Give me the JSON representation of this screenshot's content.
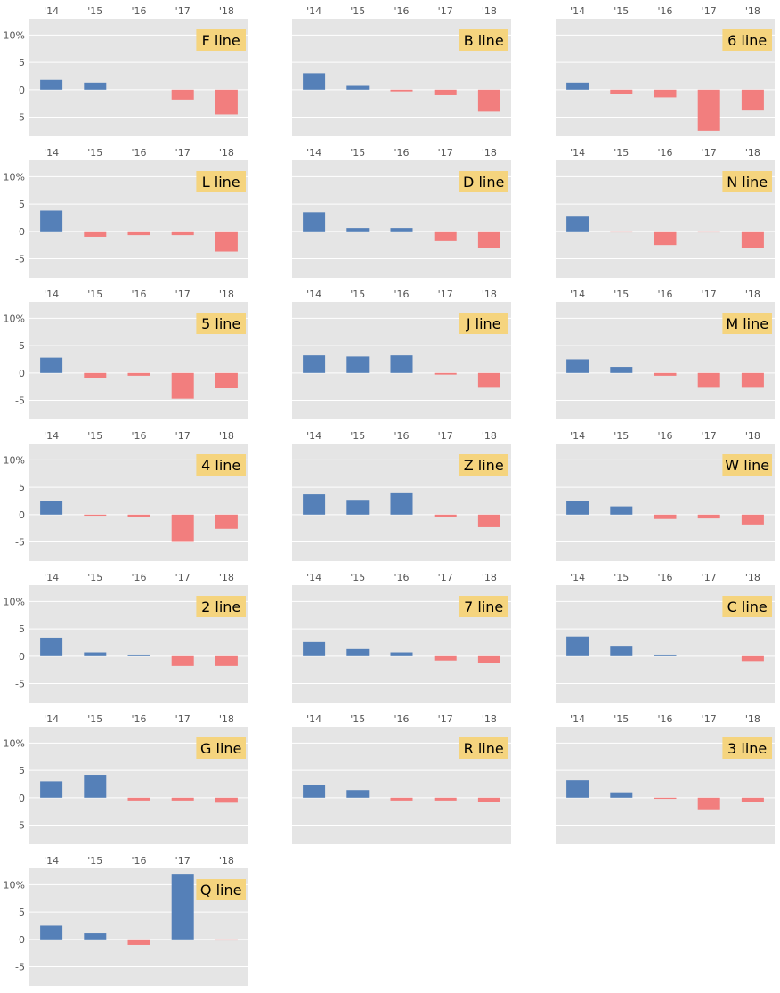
{
  "chart_data": {
    "type": "bar",
    "categories": [
      "'14",
      "'15",
      "'16",
      "'17",
      "'18"
    ],
    "ylim": [
      -8.5,
      13
    ],
    "yticks": [
      {
        "value": 10,
        "label": "10%"
      },
      {
        "value": 5,
        "label": "5"
      },
      {
        "value": 0,
        "label": "0"
      },
      {
        "value": -5,
        "label": "-5"
      }
    ],
    "grid": true,
    "colors": {
      "positive": "#5580b8",
      "negative": "#f27e7e",
      "panel_bg": "#e5e5e5",
      "label_bg": "#f5d47e"
    },
    "panels": [
      {
        "label": "F line",
        "values": [
          1.8,
          1.3,
          0,
          -1.8,
          -4.5
        ]
      },
      {
        "label": "B line",
        "values": [
          3.0,
          0.7,
          -0.3,
          -1.0,
          -4.0
        ]
      },
      {
        "label": "6 line",
        "values": [
          1.3,
          -0.8,
          -1.4,
          -7.5,
          -3.8
        ]
      },
      {
        "label": "L line",
        "values": [
          3.8,
          -1.0,
          -0.7,
          -0.7,
          -3.7
        ]
      },
      {
        "label": "D line",
        "values": [
          3.5,
          0.6,
          0.6,
          -1.8,
          -3.0
        ]
      },
      {
        "label": "N line",
        "values": [
          2.7,
          -0.2,
          -2.5,
          -0.2,
          -3.0
        ]
      },
      {
        "label": "5 line",
        "values": [
          2.8,
          -0.9,
          -0.5,
          -4.7,
          -2.8
        ]
      },
      {
        "label": "J line",
        "values": [
          3.2,
          3.0,
          3.2,
          -0.3,
          -2.7
        ]
      },
      {
        "label": "M line",
        "values": [
          2.5,
          1.1,
          -0.5,
          -2.7,
          -2.7
        ]
      },
      {
        "label": "4 line",
        "values": [
          2.5,
          -0.2,
          -0.5,
          -5.0,
          -2.6
        ]
      },
      {
        "label": "Z line",
        "values": [
          3.7,
          2.7,
          3.9,
          -0.4,
          -2.3
        ]
      },
      {
        "label": "W line",
        "values": [
          2.5,
          1.5,
          -0.8,
          -0.7,
          -1.8
        ]
      },
      {
        "label": "2 line",
        "values": [
          3.4,
          0.7,
          0.3,
          -1.8,
          -1.8
        ]
      },
      {
        "label": "7 line",
        "values": [
          2.6,
          1.3,
          0.7,
          -0.8,
          -1.3
        ]
      },
      {
        "label": "C line",
        "values": [
          3.6,
          1.9,
          0.3,
          0,
          -0.9
        ]
      },
      {
        "label": "G line",
        "values": [
          3.0,
          4.2,
          -0.5,
          -0.5,
          -0.9
        ]
      },
      {
        "label": "R line",
        "values": [
          2.4,
          1.4,
          -0.5,
          -0.5,
          -0.7
        ]
      },
      {
        "label": "3 line",
        "values": [
          3.2,
          1.0,
          -0.2,
          -2.1,
          -0.7
        ]
      },
      {
        "label": "Q line",
        "values": [
          2.5,
          1.1,
          -1.0,
          12.0,
          -0.2
        ]
      }
    ]
  }
}
